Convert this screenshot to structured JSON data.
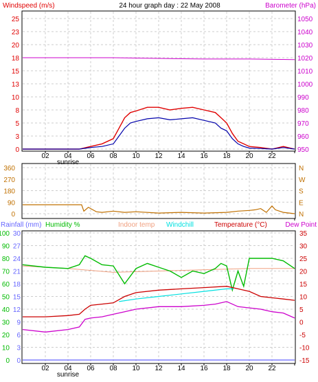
{
  "header": {
    "title": "24 hour graph day : 22 May 2008",
    "windspeed_label": "Windspeed (m/s)",
    "barometer_label": "Barometer (hPa)"
  },
  "bottom_header": {
    "rainfall": "Rainfall (mm)",
    "humidity": "Humidity %",
    "indoor": "Indoor temp",
    "windchill": "Windchill",
    "temperature": "Temperature (°C)",
    "dewpoint": "Dew Point"
  },
  "colors": {
    "wind_gust": "#e00000",
    "wind_avg": "#0000aa",
    "barometer": "#cc00cc",
    "direction": "#c07000",
    "humidity": "#00bb00",
    "indoor": "#f0a080",
    "windchill": "#00e0e0",
    "temperature": "#cc0000",
    "dewpoint": "#cc00cc",
    "rainfall": "#6666ff"
  },
  "chart_data": [
    {
      "type": "line",
      "panel": "wind",
      "x_ticks": [
        "02",
        "04",
        "06",
        "08",
        "10",
        "12",
        "14",
        "16",
        "18",
        "20",
        "22",
        ""
      ],
      "x_annotation": {
        "label": "sunrise",
        "at": "04"
      },
      "y_left_ticks": [
        "0",
        "3",
        "5",
        "8",
        "10",
        "13",
        "15",
        "18",
        "20",
        "23",
        "25"
      ],
      "y_left_range": [
        0,
        25
      ],
      "y_right_ticks": [
        "950",
        "960",
        "970",
        "980",
        "990",
        "1000",
        "1010",
        "1020",
        "1030",
        "1040",
        "1050"
      ],
      "y_right_range": [
        950,
        1050
      ],
      "series": [
        {
          "name": "",
          "axis": "left",
          "x": [
            0,
            4,
            5,
            6,
            7,
            8,
            8.5,
            9,
            9.5,
            10,
            11,
            12,
            13,
            14,
            15,
            16,
            17,
            17.5,
            18,
            18.5,
            19,
            19.5,
            20,
            21,
            22,
            23,
            24
          ],
          "y": [
            0,
            0,
            0,
            0.5,
            1,
            2,
            4,
            6,
            7,
            7.3,
            8,
            8,
            7.5,
            7.8,
            8,
            7.5,
            7,
            6,
            5,
            3,
            1.5,
            1,
            0.5,
            0.3,
            0,
            0.5,
            0
          ]
        },
        {
          "name": "",
          "axis": "left",
          "x": [
            0,
            4,
            5,
            6,
            7,
            8,
            8.5,
            9,
            9.5,
            10,
            11,
            12,
            13,
            14,
            15,
            16,
            17,
            17.5,
            18,
            18.5,
            19,
            19.5,
            20,
            21,
            22,
            23,
            24
          ],
          "y": [
            0,
            0,
            0,
            0.3,
            0.5,
            1,
            2.5,
            4,
            5,
            5.3,
            5.8,
            6,
            5.6,
            5.8,
            6,
            5.5,
            5,
            4,
            3.5,
            2,
            1,
            0.5,
            0.2,
            0.1,
            0,
            0.3,
            0
          ]
        },
        {
          "name": "",
          "axis": "right",
          "x": [
            0,
            4,
            8,
            12,
            16,
            20,
            24
          ],
          "y": [
            1020,
            1020,
            1020,
            1019.5,
            1019,
            1019,
            1018.5
          ]
        }
      ]
    },
    {
      "type": "line",
      "panel": "direction",
      "y_left_ticks": [
        "0",
        "90",
        "180",
        "270",
        "360"
      ],
      "y_left_range": [
        0,
        360
      ],
      "y_right_ticks": [
        "N",
        "E",
        "S",
        "W",
        "N"
      ],
      "series": [
        {
          "name": "",
          "axis": "left",
          "x": [
            0,
            5.2,
            5.4,
            5.8,
            6,
            6.5,
            7,
            8,
            9,
            10,
            12,
            14,
            16,
            18,
            19,
            20,
            20.5,
            21,
            21.5,
            22,
            22.3,
            23,
            24
          ],
          "y": [
            70,
            70,
            20,
            50,
            40,
            15,
            10,
            20,
            10,
            15,
            5,
            10,
            5,
            10,
            20,
            25,
            30,
            40,
            10,
            60,
            30,
            10,
            0
          ]
        }
      ]
    },
    {
      "type": "line",
      "panel": "temperature",
      "y_rain_ticks": [
        "0",
        "3",
        "6",
        "9",
        "12",
        "15",
        "18",
        "21",
        "24",
        "27",
        "30"
      ],
      "y_humidity_ticks": [
        "0",
        "10",
        "20",
        "30",
        "40",
        "50",
        "60",
        "70",
        "80",
        "90",
        "100"
      ],
      "y_right_ticks": [
        "-15",
        "-10",
        "-5",
        "0",
        "5",
        "10",
        "15",
        "20",
        "25",
        "30",
        "35"
      ],
      "y_right_range": [
        -15,
        35
      ],
      "series": [
        {
          "name": "",
          "axis": "humidity",
          "x": [
            0,
            2,
            4,
            5,
            5.5,
            6,
            7,
            8,
            8.5,
            9,
            10,
            11,
            12,
            13,
            14,
            15,
            16,
            17,
            17.5,
            18,
            18.5,
            19,
            19.5,
            20,
            21,
            22,
            23,
            24
          ],
          "y": [
            75,
            73,
            72,
            75,
            82,
            80,
            75,
            74,
            67,
            60,
            72,
            76,
            73,
            70,
            65,
            70,
            68,
            72,
            76,
            74,
            55,
            70,
            58,
            80,
            80,
            80,
            78,
            72
          ]
        },
        {
          "name": "",
          "axis": "right",
          "x": [
            0,
            4,
            8,
            12,
            16,
            20,
            24
          ],
          "y": [
            22,
            21,
            19.5,
            20,
            20.5,
            21,
            21
          ]
        },
        {
          "name": "",
          "axis": "right",
          "x": [
            8.5,
            10,
            12,
            14,
            16,
            18,
            18.6
          ],
          "y": [
            8,
            9,
            10,
            11,
            12,
            13,
            13
          ]
        },
        {
          "name": "",
          "axis": "right",
          "x": [
            0,
            2,
            4,
            5,
            5.5,
            6,
            7,
            8,
            9,
            10,
            12,
            14,
            16,
            18,
            19,
            20,
            21,
            22,
            23,
            24
          ],
          "y": [
            2,
            2,
            2.5,
            3,
            5,
            6.5,
            7,
            7.5,
            10,
            11.5,
            12.5,
            13,
            13.5,
            14,
            13,
            12,
            10,
            9.5,
            9,
            8.5
          ]
        },
        {
          "name": "",
          "axis": "right",
          "x": [
            0,
            2,
            4,
            5,
            5.5,
            6,
            7,
            8,
            9,
            10,
            12,
            14,
            16,
            17,
            18,
            19,
            20,
            21,
            22,
            23,
            24
          ],
          "y": [
            -3,
            -4,
            -3,
            -2,
            1,
            1.5,
            2,
            3,
            4,
            5,
            6,
            6,
            6.5,
            7,
            8,
            6,
            5.5,
            5,
            4,
            3.5,
            1.5
          ]
        },
        {
          "name": "",
          "axis": "rain",
          "x": [
            0,
            24
          ],
          "y": [
            0,
            0
          ]
        }
      ]
    }
  ]
}
